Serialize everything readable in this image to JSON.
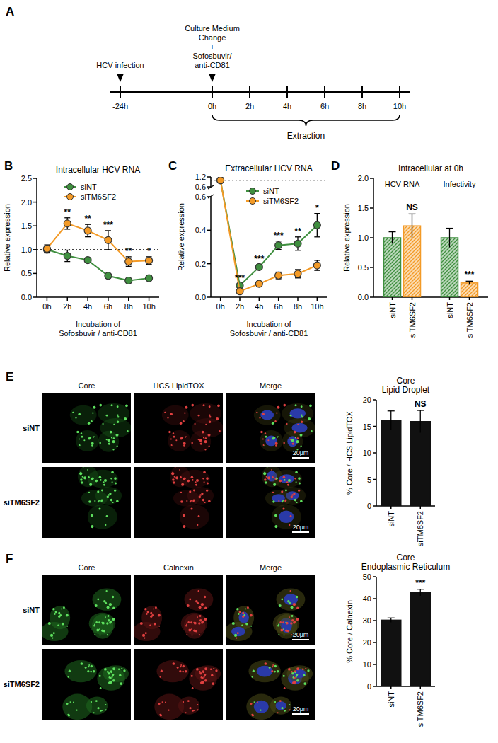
{
  "panel_labels": [
    "A",
    "B",
    "C",
    "D",
    "E",
    "F"
  ],
  "timeline": {
    "ticks": [
      "-24h",
      "0h",
      "2h",
      "4h",
      "6h",
      "8h",
      "10h"
    ],
    "events": [
      {
        "tick": 0,
        "label": "HCV infection"
      },
      {
        "tick": 1,
        "label": "Culture Medium\nChange\n+\nSofosbuvir/\nanti-CD81"
      }
    ],
    "span": [
      1,
      6
    ],
    "span_label": "Extraction"
  },
  "chart_data": [
    {
      "type": "line",
      "title": "Intracellular HCV RNA",
      "categories": [
        "0h",
        "2h",
        "4h",
        "6h",
        "8h",
        "10h"
      ],
      "x_label": "Incubation of\nSofosbuvir / anti-CD81",
      "y_label": "Relative expression",
      "ylim": [
        0,
        2.5
      ],
      "yticks": [
        {
          "value": 0,
          "label": "0.0"
        },
        0.5,
        {
          "value": 1,
          "label": "1.0"
        },
        1.5,
        {
          "value": 2,
          "label": "2.0"
        },
        2.5
      ],
      "hline": 1,
      "legend": "top",
      "marker": "circle",
      "series": [
        {
          "name": "siNT",
          "color": "#3f8f3f",
          "values": [
            1.0,
            0.87,
            0.78,
            0.45,
            0.35,
            0.4
          ],
          "errors": [
            0.07,
            0.12,
            0.04,
            0.03,
            0.03,
            0.05
          ]
        },
        {
          "name": "siTM6SF2",
          "color": "#f39a26",
          "values": [
            1.02,
            1.55,
            1.4,
            1.2,
            0.75,
            0.77
          ],
          "errors": [
            0.08,
            0.12,
            0.13,
            0.2,
            0.1,
            0.08
          ]
        }
      ],
      "annotations": [
        null,
        "**",
        "**",
        "***",
        "**",
        "*"
      ]
    },
    {
      "type": "line",
      "title": "Extracellular HCV RNA",
      "categories": [
        "0h",
        "2h",
        "4h",
        "6h",
        "8h",
        "10h"
      ],
      "x_label": "Incubation of\nSofosbuvir / anti-CD81",
      "y_label": "Relative expression",
      "ylim": [
        0,
        1.2
      ],
      "ybreak": 0.6,
      "yticks": [
        {
          "value": 0,
          "label": "0.0"
        },
        0.2,
        0.4,
        0.6,
        1.2
      ],
      "hline": 1,
      "legend": "top",
      "marker": "circle",
      "series": [
        {
          "name": "siNT",
          "color": "#3f8f3f",
          "values": [
            1.0,
            0.07,
            0.18,
            0.31,
            0.32,
            0.43
          ],
          "errors": [
            0,
            0.01,
            0.015,
            0.025,
            0.04,
            0.07
          ]
        },
        {
          "name": "siTM6SF2",
          "color": "#f39a26",
          "values": [
            1.0,
            0.035,
            0.08,
            0.13,
            0.14,
            0.19
          ],
          "errors": [
            0,
            0.005,
            0.01,
            0.02,
            0.025,
            0.03
          ]
        }
      ],
      "annotations": [
        null,
        "***",
        "***",
        "***",
        "**",
        "*"
      ]
    },
    {
      "type": "bar",
      "title": "Intracellular at 0h",
      "categories": [
        "siNT",
        "siTM6SF2",
        "siNT",
        "siTM6SF2"
      ],
      "groups": [
        "HCV RNA",
        "Infectivity"
      ],
      "y_label": "Relative expression",
      "ylim": [
        0,
        2
      ],
      "yticks": [
        {
          "value": 0,
          "label": "0.0"
        },
        0.5,
        {
          "value": 1,
          "label": "1.0"
        },
        1.5,
        {
          "value": 2,
          "label": "2.0"
        }
      ],
      "colors": [
        "#3f8f3f",
        "#f39a26",
        "#3f8f3f",
        "#f39a26"
      ],
      "values": [
        1.0,
        1.2,
        1.0,
        0.24
      ],
      "errors": [
        0.1,
        0.2,
        0.16,
        0.03
      ],
      "annotations": [
        null,
        "NS",
        null,
        "***"
      ]
    },
    {
      "type": "bar",
      "title": "Core\nLipid Droplet",
      "categories": [
        "siNT",
        "siTM6SF2"
      ],
      "y_label": "% Core / HCS LipidTOX",
      "ylim": [
        0,
        20
      ],
      "yticks": [
        0,
        5,
        10,
        15,
        20
      ],
      "color": "#111111",
      "values": [
        16.1,
        15.9
      ],
      "errors": [
        1.8,
        2.1
      ],
      "annotations": [
        null,
        "NS"
      ]
    },
    {
      "type": "bar",
      "title": "Core\nEndoplasmic Reticulum",
      "categories": [
        "siNT",
        "siTM6SF2"
      ],
      "y_label": "% Core / Calnexin",
      "ylim": [
        0,
        50
      ],
      "yticks": [
        0,
        10,
        20,
        30,
        40,
        50
      ],
      "color": "#111111",
      "values": [
        30.2,
        42.8
      ],
      "errors": [
        1.0,
        1.5
      ],
      "annotations": [
        null,
        "***"
      ]
    }
  ],
  "micrographs": [
    {
      "columns": [
        "Core",
        "HCS LipidTOX",
        "Merge"
      ],
      "rows": [
        "siNT",
        "siTM6SF2"
      ],
      "scale_bar": "20µm"
    },
    {
      "columns": [
        "Core",
        "Calnexin",
        "Merge"
      ],
      "rows": [
        "siNT",
        "siTM6SF2"
      ],
      "scale_bar": "20µm"
    }
  ]
}
